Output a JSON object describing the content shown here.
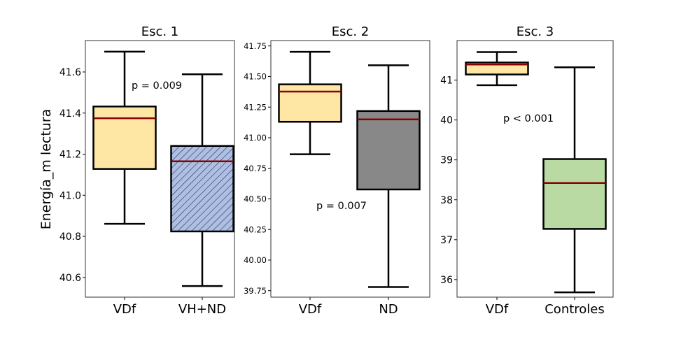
{
  "chart_data": [
    {
      "type": "boxplot",
      "title": "Esc. 1",
      "ylabel": "Energía_m lectura",
      "ylim": [
        40.504,
        41.753
      ],
      "yticks": [
        "40.6",
        "40.8",
        "41.0",
        "41.2",
        "41.4",
        "41.6"
      ],
      "ytick_values": [
        40.6,
        40.8,
        41.0,
        41.2,
        41.4,
        41.6
      ],
      "categories": [
        "VDf",
        "VH+ND"
      ],
      "boxes": [
        {
          "whisker_low": 40.861,
          "q1": 41.128,
          "median": 41.375,
          "q3": 41.432,
          "whisker_high": 41.699,
          "fill": "#fee6a5",
          "hatch": false
        },
        {
          "whisker_low": 40.558,
          "q1": 40.824,
          "median": 41.165,
          "q3": 41.24,
          "whisker_high": 41.589,
          "fill": "#aebfe3",
          "hatch": true
        }
      ],
      "annotation": "p = 0.009"
    },
    {
      "type": "boxplot",
      "title": "Esc. 2",
      "ylim": [
        39.697,
        41.794
      ],
      "yticks": [
        "39.75",
        "40.00",
        "40.25",
        "40.50",
        "40.75",
        "41.00",
        "41.25",
        "41.50",
        "41.75"
      ],
      "ytick_values": [
        39.75,
        40.0,
        40.25,
        40.5,
        40.75,
        41.0,
        41.25,
        41.5,
        41.75
      ],
      "categories": [
        "VDf",
        "ND"
      ],
      "boxes": [
        {
          "whisker_low": 40.865,
          "q1": 41.13,
          "median": 41.377,
          "q3": 41.436,
          "whisker_high": 41.702,
          "fill": "#fee6a5",
          "hatch": false
        },
        {
          "whisker_low": 39.78,
          "q1": 40.577,
          "median": 41.15,
          "q3": 41.218,
          "whisker_high": 41.592,
          "fill": "#888888",
          "hatch": false
        }
      ],
      "annotation": "p = 0.007"
    },
    {
      "type": "boxplot",
      "title": "Esc. 3",
      "ylim": [
        35.56,
        41.99
      ],
      "yticks": [
        "36",
        "37",
        "38",
        "39",
        "40",
        "41"
      ],
      "ytick_values": [
        36,
        37,
        38,
        39,
        40,
        41
      ],
      "categories": [
        "VDf",
        "Controles"
      ],
      "boxes": [
        {
          "whisker_low": 40.87,
          "q1": 41.14,
          "median": 41.39,
          "q3": 41.44,
          "whisker_high": 41.7,
          "fill": "#fee6a5",
          "hatch": false
        },
        {
          "whisker_low": 35.68,
          "q1": 37.27,
          "median": 38.42,
          "q3": 39.02,
          "whisker_high": 41.32,
          "fill": "#b9daa3",
          "hatch": false
        }
      ],
      "annotation": "p < 0.001"
    }
  ],
  "colors": {
    "median": "#8b0000",
    "box_edge": "#000000"
  }
}
